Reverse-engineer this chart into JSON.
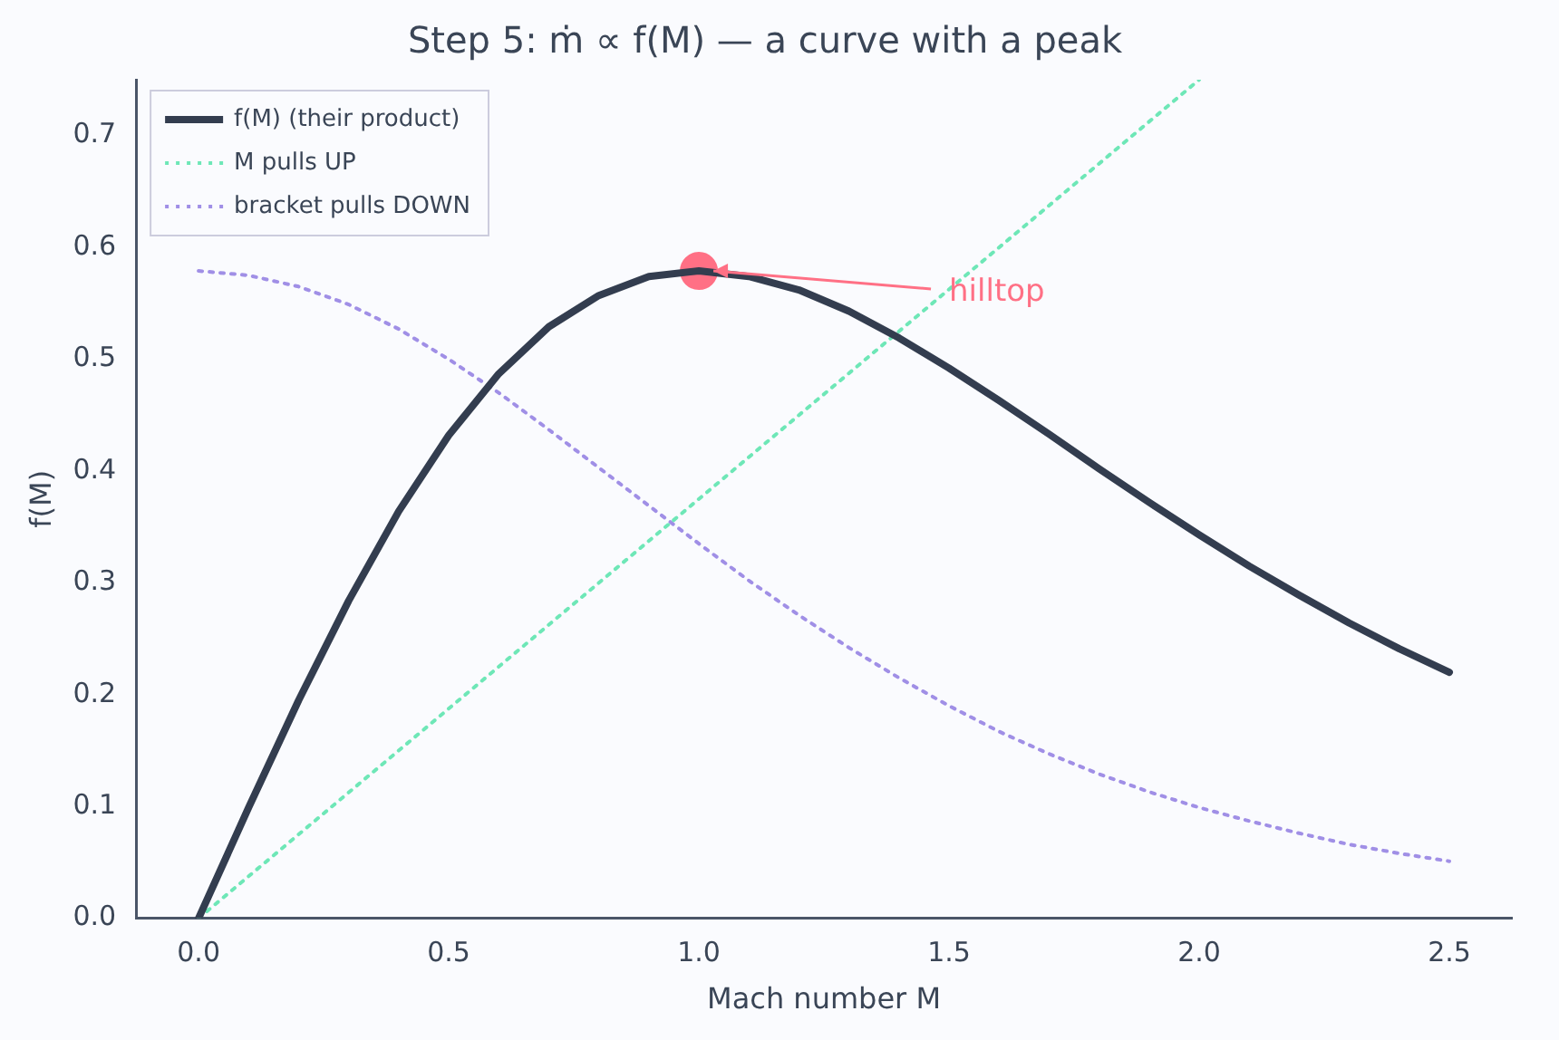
{
  "chart_data": {
    "type": "line",
    "title": "Step 5: ṁ ∝ f(M) — a curve with a peak",
    "xlabel": "Mach number M",
    "ylabel": "f(M)",
    "xlim": [
      -0.125,
      2.625
    ],
    "ylim": [
      0,
      0.75
    ],
    "xticks": [
      {
        "value": 0,
        "label": "0.0"
      },
      {
        "value": 0.5,
        "label": "0.5"
      },
      {
        "value": 1,
        "label": "1.0"
      },
      {
        "value": 1.5,
        "label": "1.5"
      },
      {
        "value": 2,
        "label": "2.0"
      },
      {
        "value": 2.5,
        "label": "2.5"
      }
    ],
    "yticks": [
      {
        "value": 0,
        "label": "0.0"
      },
      {
        "value": 0.1,
        "label": "0.1"
      },
      {
        "value": 0.2,
        "label": "0.2"
      },
      {
        "value": 0.3,
        "label": "0.3"
      },
      {
        "value": 0.4,
        "label": "0.4"
      },
      {
        "value": 0.5,
        "label": "0.5"
      },
      {
        "value": 0.6,
        "label": "0.6"
      },
      {
        "value": 0.7,
        "label": "0.7"
      }
    ],
    "grid": false,
    "legend": "top left",
    "marker": "none",
    "series": [
      {
        "name": "f(M) (their product)",
        "line_style": "solid",
        "color": "#333d4f",
        "x": [
          0,
          0.1,
          0.2,
          0.3,
          0.4,
          0.5,
          0.6,
          0.7,
          0.8,
          0.9,
          1.0,
          1.1,
          1.2,
          1.3,
          1.4,
          1.5,
          1.6,
          1.7,
          1.8,
          1.9,
          2.0,
          2.1,
          2.2,
          2.3,
          2.4,
          2.5
        ],
        "values": [
          0,
          0.099,
          0.195,
          0.284,
          0.364,
          0.432,
          0.487,
          0.529,
          0.557,
          0.574,
          0.579,
          0.574,
          0.562,
          0.543,
          0.519,
          0.492,
          0.463,
          0.433,
          0.402,
          0.372,
          0.343,
          0.315,
          0.289,
          0.264,
          0.241,
          0.22
        ]
      },
      {
        "name": "M pulls UP",
        "line_style": "dotted",
        "color": "#6ee7b7",
        "x": [
          0,
          2.0
        ],
        "values": [
          0,
          0.75
        ]
      },
      {
        "name": "bracket pulls DOWN",
        "line_style": "dotted",
        "color": "#a08fe6",
        "x": [
          0,
          0.1,
          0.2,
          0.3,
          0.4,
          0.5,
          0.6,
          0.7,
          0.8,
          0.9,
          1.0,
          1.1,
          1.2,
          1.3,
          1.4,
          1.5,
          1.6,
          1.7,
          1.8,
          1.9,
          2.0,
          2.1,
          2.2,
          2.3,
          2.4,
          2.5
        ],
        "values": [
          0.579,
          0.575,
          0.565,
          0.549,
          0.527,
          0.5,
          0.47,
          0.437,
          0.403,
          0.369,
          0.335,
          0.302,
          0.271,
          0.242,
          0.215,
          0.19,
          0.167,
          0.147,
          0.129,
          0.113,
          0.099,
          0.087,
          0.076,
          0.066,
          0.058,
          0.051
        ]
      },
      {
        "type": "scatter",
        "marker": "circle",
        "color": "#ff7085",
        "x": [
          1.0
        ],
        "values": [
          0.579
        ]
      }
    ],
    "annotations": [
      {
        "text": "hilltop",
        "x": 1.0,
        "y": 0.579
      }
    ]
  }
}
